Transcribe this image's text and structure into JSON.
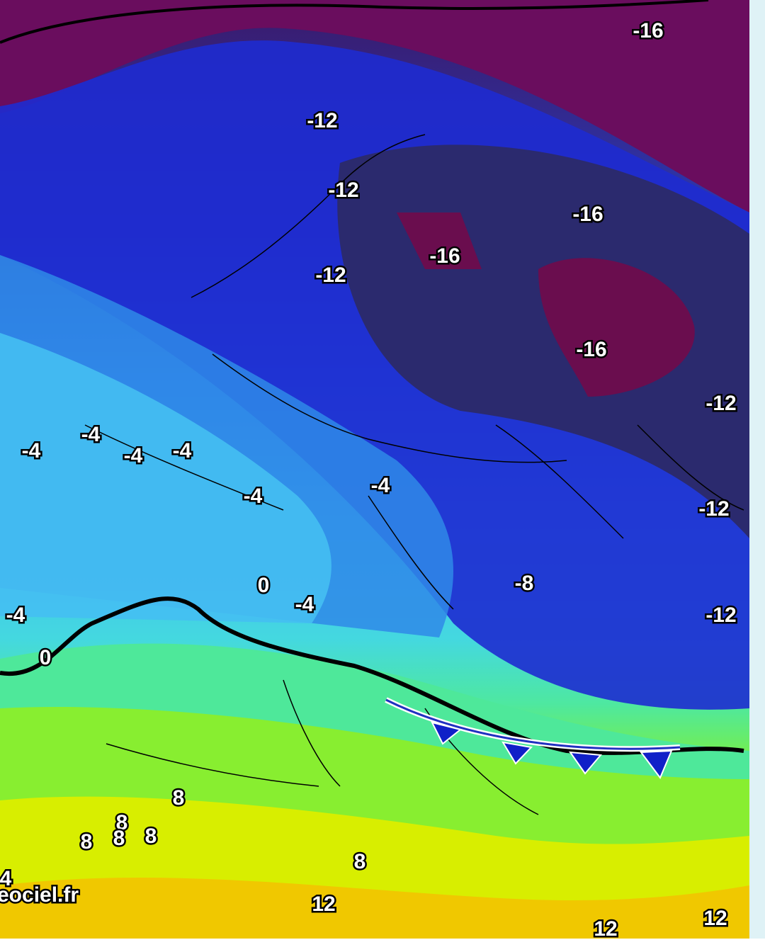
{
  "map": {
    "labels": [
      -16,
      -12,
      -12,
      -16,
      -16,
      -12,
      -16,
      -12,
      -4,
      -4,
      -4,
      -4,
      -4,
      -4,
      -12,
      -8,
      0,
      -4,
      -12,
      -4,
      0,
      8,
      8,
      8,
      8,
      8,
      8,
      4,
      12,
      12,
      12
    ],
    "watermark": "eociel.fr"
  }
}
